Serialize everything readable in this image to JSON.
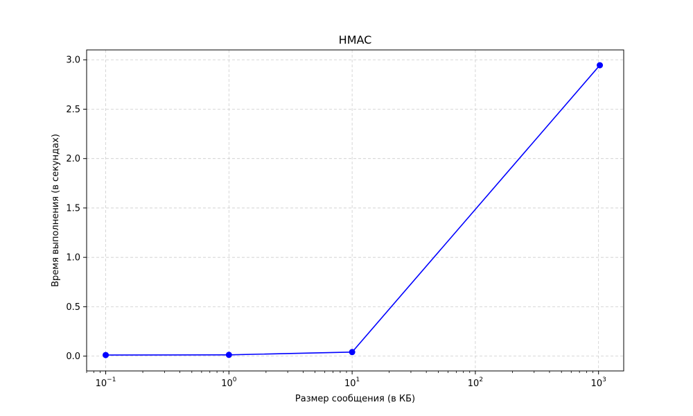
{
  "chart_data": {
    "type": "line",
    "title": "HMAC",
    "xlabel": "Размер сообщения (в КБ)",
    "ylabel": "Время выполнения (в секундах)",
    "x_scale": "log",
    "x": [
      0.1,
      1,
      10,
      1024
    ],
    "series": [
      {
        "values": [
          0.011,
          0.013,
          0.041,
          2.945
        ],
        "color": "#0000ff",
        "marker": "circle"
      }
    ],
    "xlim": [
      0.07,
      1600
    ],
    "ylim": [
      -0.15,
      3.1
    ],
    "x_ticks": [
      {
        "value": 0.1,
        "base": "10",
        "exp": "−1"
      },
      {
        "value": 1,
        "base": "10",
        "exp": "0"
      },
      {
        "value": 10,
        "base": "10",
        "exp": "1"
      },
      {
        "value": 100,
        "base": "10",
        "exp": "2"
      },
      {
        "value": 1000,
        "base": "10",
        "exp": "3"
      }
    ],
    "y_ticks": [
      0.0,
      0.5,
      1.0,
      1.5,
      2.0,
      2.5,
      3.0
    ],
    "y_tick_labels": [
      "0.0",
      "0.5",
      "1.0",
      "1.5",
      "2.0",
      "2.5",
      "3.0"
    ],
    "grid": true,
    "grid_style": "dashed",
    "grid_color": "#cccccc"
  }
}
